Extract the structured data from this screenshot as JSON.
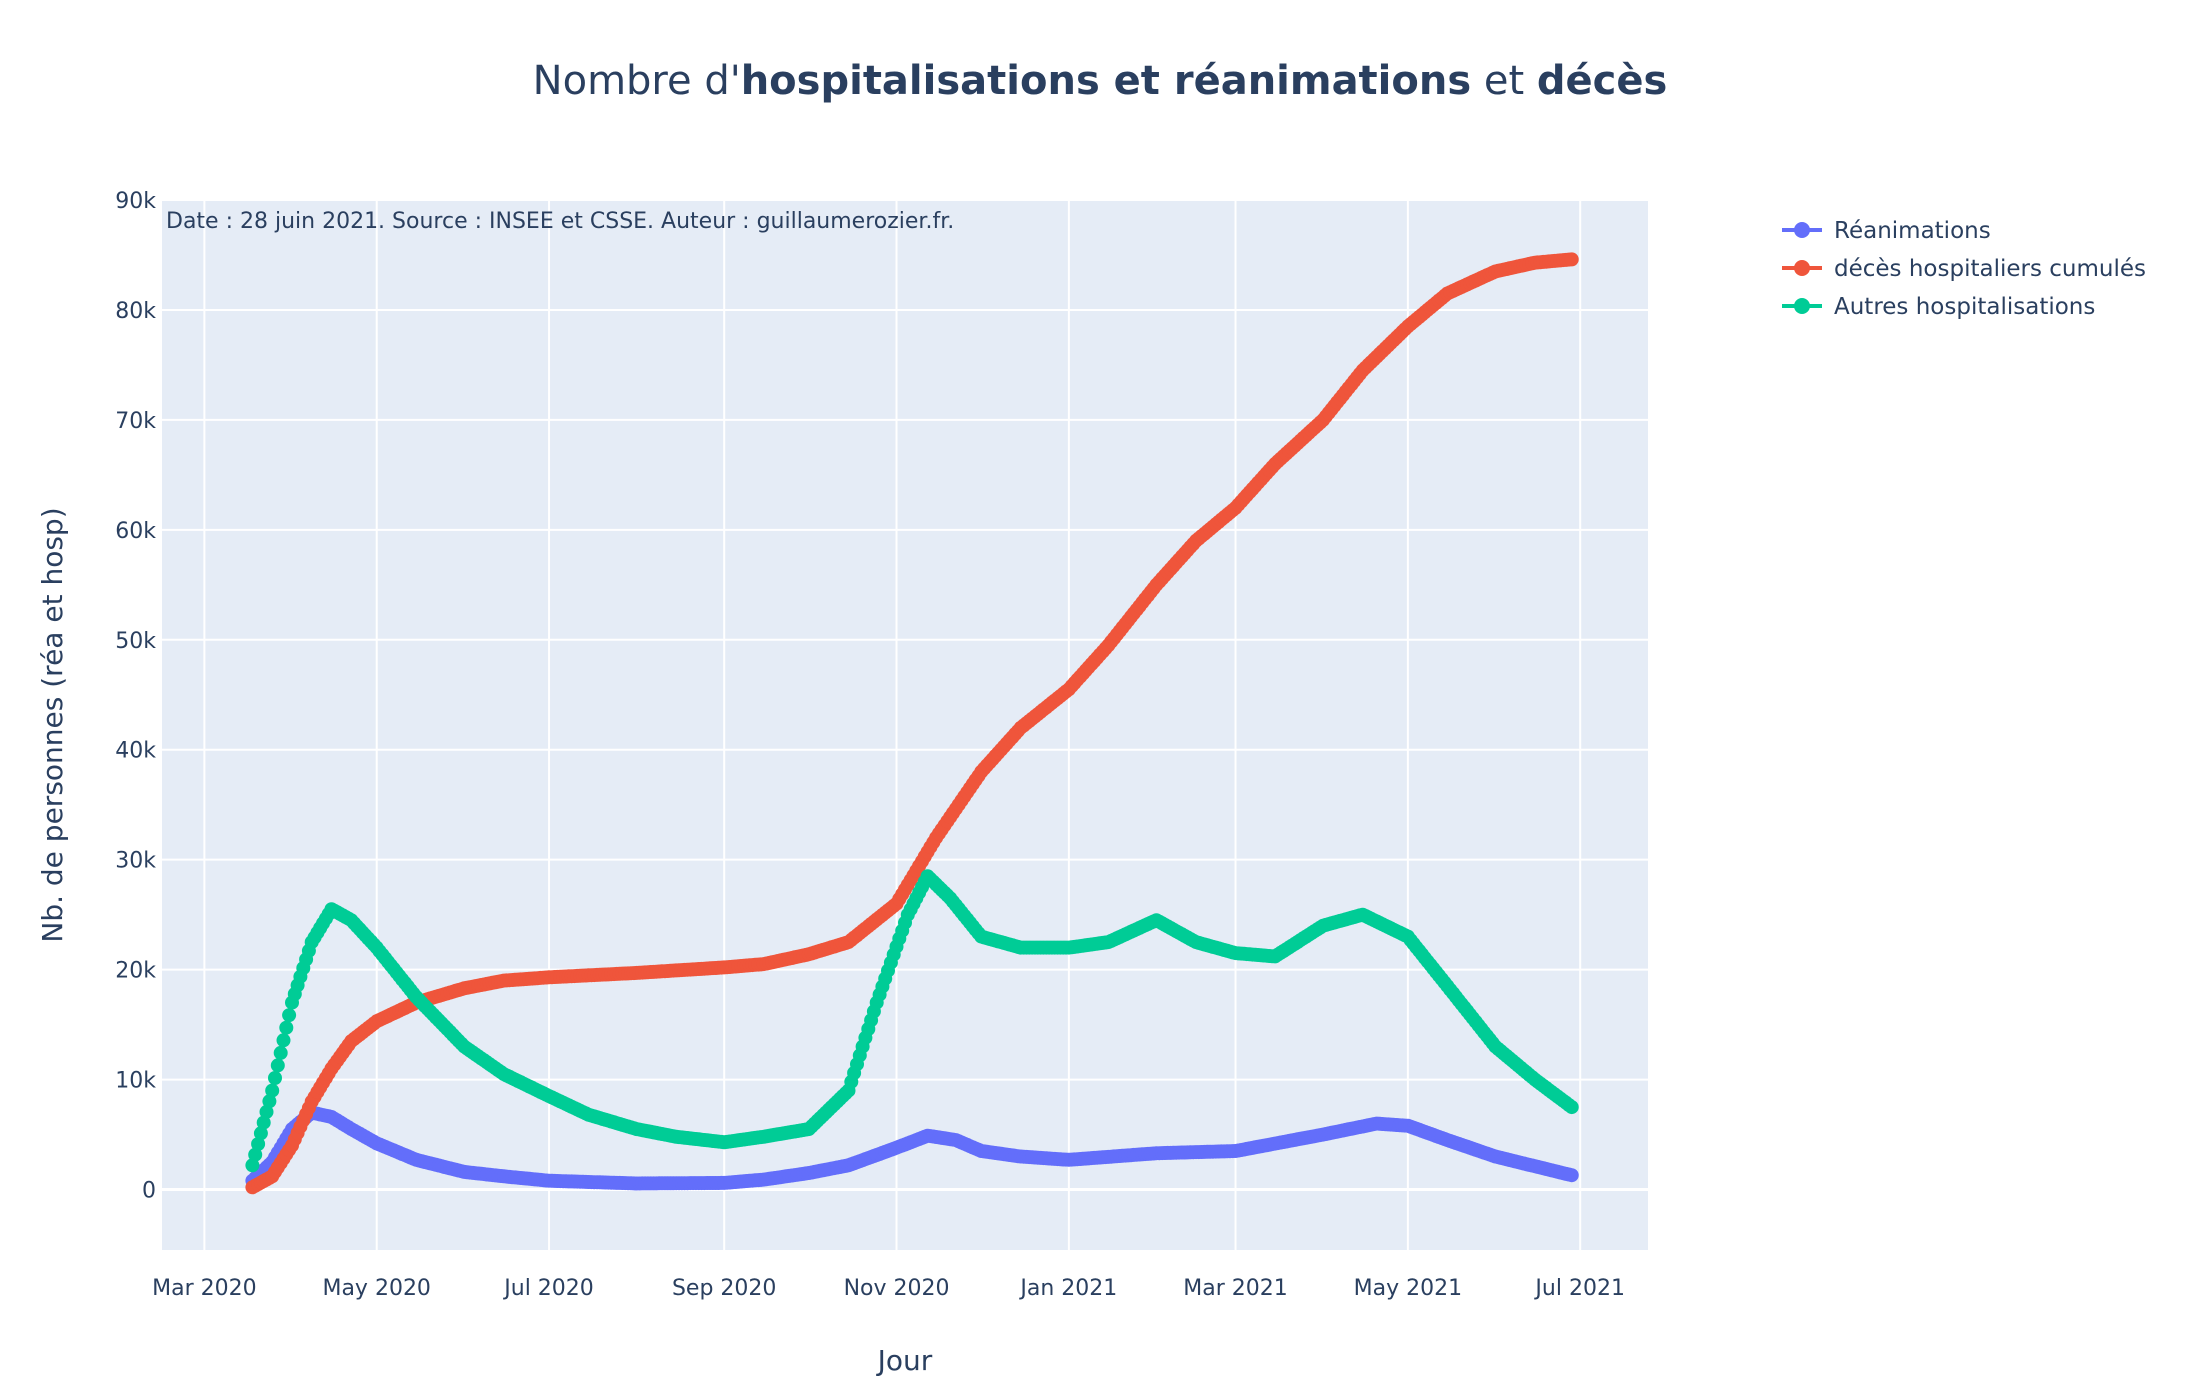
{
  "title": {
    "prefix": "Nombre d'",
    "bold1": "hospitalisations et réanimations",
    "middle": " et ",
    "bold2": "décès"
  },
  "annotation": "Date : 28 juin 2021. Source : INSEE et CSSE. Auteur : guillaumerozier.fr.",
  "chart_data": {
    "type": "scatter",
    "mode": "lines+markers",
    "xlabel": "Jour",
    "ylabel": "Nb. de personnes (réa et hosp)",
    "xlim": [
      "2020-02-15",
      "2021-07-25"
    ],
    "ylim": [
      -5500,
      90000
    ],
    "grid": true,
    "legend_position": "top-right outside",
    "x_ticks": [
      {
        "date": "2020-03-01",
        "label": "Mar 2020"
      },
      {
        "date": "2020-05-01",
        "label": "May 2020"
      },
      {
        "date": "2020-07-01",
        "label": "Jul 2020"
      },
      {
        "date": "2020-09-01",
        "label": "Sep 2020"
      },
      {
        "date": "2020-11-01",
        "label": "Nov 2020"
      },
      {
        "date": "2021-01-01",
        "label": "Jan 2021"
      },
      {
        "date": "2021-03-01",
        "label": "Mar 2021"
      },
      {
        "date": "2021-05-01",
        "label": "May 2021"
      },
      {
        "date": "2021-07-01",
        "label": "Jul 2021"
      }
    ],
    "y_ticks": [
      {
        "value": 0,
        "label": "0"
      },
      {
        "value": 10000,
        "label": "10k"
      },
      {
        "value": 20000,
        "label": "20k"
      },
      {
        "value": 30000,
        "label": "30k"
      },
      {
        "value": 40000,
        "label": "40k"
      },
      {
        "value": 50000,
        "label": "50k"
      },
      {
        "value": 60000,
        "label": "60k"
      },
      {
        "value": 70000,
        "label": "70k"
      },
      {
        "value": 80000,
        "label": "80k"
      },
      {
        "value": 90000,
        "label": "90k"
      }
    ],
    "series": [
      {
        "name": "Réanimations",
        "color": "#636efa",
        "points": [
          [
            "2020-03-18",
            800
          ],
          [
            "2020-03-25",
            2500
          ],
          [
            "2020-04-01",
            5500
          ],
          [
            "2020-04-08",
            7000
          ],
          [
            "2020-04-15",
            6600
          ],
          [
            "2020-04-22",
            5500
          ],
          [
            "2020-05-01",
            4200
          ],
          [
            "2020-05-15",
            2700
          ],
          [
            "2020-06-01",
            1600
          ],
          [
            "2020-06-15",
            1200
          ],
          [
            "2020-07-01",
            800
          ],
          [
            "2020-08-01",
            550
          ],
          [
            "2020-09-01",
            600
          ],
          [
            "2020-09-15",
            900
          ],
          [
            "2020-10-01",
            1500
          ],
          [
            "2020-10-15",
            2200
          ],
          [
            "2020-11-01",
            3800
          ],
          [
            "2020-11-12",
            4900
          ],
          [
            "2020-11-22",
            4500
          ],
          [
            "2020-12-01",
            3500
          ],
          [
            "2020-12-15",
            3000
          ],
          [
            "2021-01-01",
            2700
          ],
          [
            "2021-02-01",
            3300
          ],
          [
            "2021-03-01",
            3500
          ],
          [
            "2021-04-01",
            5000
          ],
          [
            "2021-04-20",
            6000
          ],
          [
            "2021-05-01",
            5800
          ],
          [
            "2021-05-15",
            4500
          ],
          [
            "2021-06-01",
            3000
          ],
          [
            "2021-06-28",
            1300
          ]
        ]
      },
      {
        "name": "décès hospitaliers cumulés",
        "color": "#ef553b",
        "points": [
          [
            "2020-03-18",
            200
          ],
          [
            "2020-03-25",
            1200
          ],
          [
            "2020-04-01",
            4000
          ],
          [
            "2020-04-08",
            8000
          ],
          [
            "2020-04-15",
            11000
          ],
          [
            "2020-04-22",
            13500
          ],
          [
            "2020-05-01",
            15300
          ],
          [
            "2020-05-15",
            17000
          ],
          [
            "2020-06-01",
            18300
          ],
          [
            "2020-06-15",
            19000
          ],
          [
            "2020-07-01",
            19300
          ],
          [
            "2020-08-01",
            19700
          ],
          [
            "2020-09-01",
            20200
          ],
          [
            "2020-09-15",
            20500
          ],
          [
            "2020-10-01",
            21400
          ],
          [
            "2020-10-15",
            22500
          ],
          [
            "2020-11-01",
            26000
          ],
          [
            "2020-11-15",
            32000
          ],
          [
            "2020-12-01",
            38000
          ],
          [
            "2020-12-15",
            42000
          ],
          [
            "2021-01-01",
            45500
          ],
          [
            "2021-01-15",
            49500
          ],
          [
            "2021-02-01",
            55000
          ],
          [
            "2021-02-15",
            59000
          ],
          [
            "2021-03-01",
            62000
          ],
          [
            "2021-03-15",
            66000
          ],
          [
            "2021-04-01",
            70000
          ],
          [
            "2021-04-15",
            74500
          ],
          [
            "2021-05-01",
            78500
          ],
          [
            "2021-05-15",
            81500
          ],
          [
            "2021-06-01",
            83500
          ],
          [
            "2021-06-15",
            84300
          ],
          [
            "2021-06-28",
            84600
          ]
        ]
      },
      {
        "name": "Autres hospitalisations",
        "color": "#00cc96",
        "points": [
          [
            "2020-03-18",
            2200
          ],
          [
            "2020-03-25",
            9000
          ],
          [
            "2020-04-01",
            17000
          ],
          [
            "2020-04-08",
            22500
          ],
          [
            "2020-04-15",
            25500
          ],
          [
            "2020-04-22",
            24500
          ],
          [
            "2020-05-01",
            22000
          ],
          [
            "2020-05-15",
            17500
          ],
          [
            "2020-06-01",
            13000
          ],
          [
            "2020-06-15",
            10500
          ],
          [
            "2020-07-01",
            8500
          ],
          [
            "2020-07-15",
            6800
          ],
          [
            "2020-08-01",
            5500
          ],
          [
            "2020-08-15",
            4800
          ],
          [
            "2020-09-01",
            4300
          ],
          [
            "2020-09-15",
            4800
          ],
          [
            "2020-10-01",
            5500
          ],
          [
            "2020-10-15",
            9000
          ],
          [
            "2020-10-25",
            17000
          ],
          [
            "2020-11-05",
            25000
          ],
          [
            "2020-11-12",
            28500
          ],
          [
            "2020-11-20",
            26500
          ],
          [
            "2020-12-01",
            23000
          ],
          [
            "2020-12-15",
            22000
          ],
          [
            "2021-01-01",
            22000
          ],
          [
            "2021-01-15",
            22500
          ],
          [
            "2021-02-01",
            24500
          ],
          [
            "2021-02-15",
            22500
          ],
          [
            "2021-03-01",
            21500
          ],
          [
            "2021-03-15",
            21200
          ],
          [
            "2021-04-01",
            24000
          ],
          [
            "2021-04-15",
            25000
          ],
          [
            "2021-05-01",
            23000
          ],
          [
            "2021-05-15",
            18500
          ],
          [
            "2021-06-01",
            13000
          ],
          [
            "2021-06-15",
            10000
          ],
          [
            "2021-06-28",
            7500
          ]
        ]
      }
    ]
  }
}
